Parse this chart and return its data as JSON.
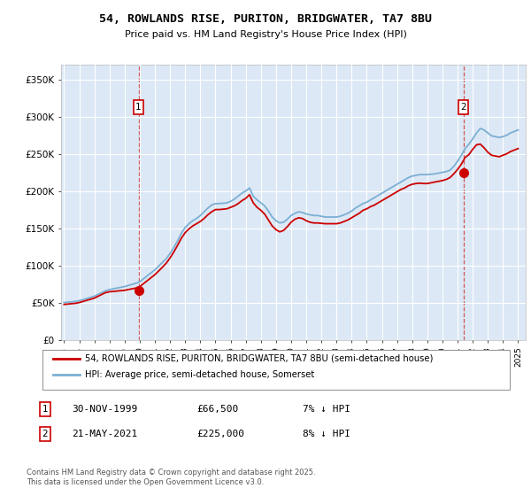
{
  "title_line1": "54, ROWLANDS RISE, PURITON, BRIDGWATER, TA7 8BU",
  "title_line2": "Price paid vs. HM Land Registry's House Price Index (HPI)",
  "legend_label1": "54, ROWLANDS RISE, PURITON, BRIDGWATER, TA7 8BU (semi-detached house)",
  "legend_label2": "HPI: Average price, semi-detached house, Somerset",
  "footnote": "Contains HM Land Registry data © Crown copyright and database right 2025.\nThis data is licensed under the Open Government Licence v3.0.",
  "purchase1_date": "30-NOV-1999",
  "purchase1_price": "£66,500",
  "purchase1_note": "7% ↓ HPI",
  "purchase2_date": "21-MAY-2021",
  "purchase2_price": "£225,000",
  "purchase2_note": "8% ↓ HPI",
  "hpi_color": "#7bafd4",
  "price_color": "#cc0000",
  "marker_color": "#cc0000",
  "bg_color": "#dce8f5",
  "grid_color": "#ffffff",
  "ylim_min": 0,
  "ylim_max": 370000,
  "yticks": [
    0,
    50000,
    100000,
    150000,
    200000,
    250000,
    300000,
    350000
  ],
  "ytick_labels": [
    "£0",
    "£50K",
    "£100K",
    "£150K",
    "£200K",
    "£250K",
    "£300K",
    "£350K"
  ],
  "purchase1_x": 1999.92,
  "purchase1_y": 66500,
  "purchase2_x": 2021.38,
  "purchase2_y": 225000,
  "vline1_x": 1999.92,
  "vline2_x": 2021.38,
  "xmin": 1994.8,
  "xmax": 2025.5,
  "hpi_data": [
    [
      1995.0,
      50000
    ],
    [
      1995.25,
      50500
    ],
    [
      1995.5,
      51000
    ],
    [
      1995.75,
      51500
    ],
    [
      1996.0,
      52500
    ],
    [
      1996.25,
      54000
    ],
    [
      1996.5,
      55500
    ],
    [
      1996.75,
      57000
    ],
    [
      1997.0,
      58500
    ],
    [
      1997.25,
      61000
    ],
    [
      1997.5,
      63500
    ],
    [
      1997.75,
      66000
    ],
    [
      1998.0,
      67500
    ],
    [
      1998.25,
      68500
    ],
    [
      1998.5,
      69500
    ],
    [
      1998.75,
      70500
    ],
    [
      1999.0,
      71500
    ],
    [
      1999.25,
      73000
    ],
    [
      1999.5,
      74500
    ],
    [
      1999.75,
      76000
    ],
    [
      2000.0,
      78000
    ],
    [
      2000.25,
      82000
    ],
    [
      2000.5,
      86000
    ],
    [
      2000.75,
      90000
    ],
    [
      2001.0,
      94000
    ],
    [
      2001.25,
      99000
    ],
    [
      2001.5,
      104000
    ],
    [
      2001.75,
      109000
    ],
    [
      2002.0,
      116000
    ],
    [
      2002.25,
      124000
    ],
    [
      2002.5,
      133000
    ],
    [
      2002.75,
      143000
    ],
    [
      2003.0,
      151000
    ],
    [
      2003.25,
      156000
    ],
    [
      2003.5,
      160000
    ],
    [
      2003.75,
      163000
    ],
    [
      2004.0,
      167000
    ],
    [
      2004.25,
      172000
    ],
    [
      2004.5,
      177000
    ],
    [
      2004.75,
      181000
    ],
    [
      2005.0,
      183000
    ],
    [
      2005.25,
      183000
    ],
    [
      2005.5,
      183500
    ],
    [
      2005.75,
      184000
    ],
    [
      2006.0,
      186000
    ],
    [
      2006.25,
      189000
    ],
    [
      2006.5,
      193000
    ],
    [
      2006.75,
      197000
    ],
    [
      2007.0,
      200000
    ],
    [
      2007.25,
      204000
    ],
    [
      2007.5,
      193000
    ],
    [
      2007.75,
      188000
    ],
    [
      2008.0,
      184000
    ],
    [
      2008.25,
      180000
    ],
    [
      2008.5,
      173000
    ],
    [
      2008.75,
      165000
    ],
    [
      2009.0,
      160000
    ],
    [
      2009.25,
      157000
    ],
    [
      2009.5,
      158000
    ],
    [
      2009.75,
      162000
    ],
    [
      2010.0,
      167000
    ],
    [
      2010.25,
      170000
    ],
    [
      2010.5,
      172000
    ],
    [
      2010.75,
      171000
    ],
    [
      2011.0,
      169000
    ],
    [
      2011.25,
      168000
    ],
    [
      2011.5,
      167000
    ],
    [
      2011.75,
      167000
    ],
    [
      2012.0,
      166000
    ],
    [
      2012.25,
      165000
    ],
    [
      2012.5,
      165000
    ],
    [
      2012.75,
      165000
    ],
    [
      2013.0,
      165000
    ],
    [
      2013.25,
      166000
    ],
    [
      2013.5,
      168000
    ],
    [
      2013.75,
      170000
    ],
    [
      2014.0,
      173000
    ],
    [
      2014.25,
      177000
    ],
    [
      2014.5,
      180000
    ],
    [
      2014.75,
      183000
    ],
    [
      2015.0,
      185000
    ],
    [
      2015.25,
      188000
    ],
    [
      2015.5,
      191000
    ],
    [
      2015.75,
      194000
    ],
    [
      2016.0,
      197000
    ],
    [
      2016.25,
      200000
    ],
    [
      2016.5,
      203000
    ],
    [
      2016.75,
      206000
    ],
    [
      2017.0,
      209000
    ],
    [
      2017.25,
      212000
    ],
    [
      2017.5,
      215000
    ],
    [
      2017.75,
      218000
    ],
    [
      2018.0,
      220000
    ],
    [
      2018.25,
      221000
    ],
    [
      2018.5,
      222000
    ],
    [
      2018.75,
      222000
    ],
    [
      2019.0,
      222000
    ],
    [
      2019.25,
      222500
    ],
    [
      2019.5,
      223000
    ],
    [
      2019.75,
      224000
    ],
    [
      2020.0,
      225000
    ],
    [
      2020.25,
      226000
    ],
    [
      2020.5,
      228000
    ],
    [
      2020.75,
      233000
    ],
    [
      2021.0,
      240000
    ],
    [
      2021.25,
      248000
    ],
    [
      2021.5,
      257000
    ],
    [
      2021.75,
      263000
    ],
    [
      2022.0,
      270000
    ],
    [
      2022.25,
      278000
    ],
    [
      2022.5,
      284000
    ],
    [
      2022.75,
      282000
    ],
    [
      2023.0,
      278000
    ],
    [
      2023.25,
      274000
    ],
    [
      2023.5,
      273000
    ],
    [
      2023.75,
      272000
    ],
    [
      2024.0,
      273000
    ],
    [
      2024.25,
      275000
    ],
    [
      2024.5,
      278000
    ],
    [
      2024.75,
      280000
    ],
    [
      2025.0,
      282000
    ]
  ],
  "price_data": [
    [
      1995.0,
      47500
    ],
    [
      1995.25,
      48000
    ],
    [
      1995.5,
      48500
    ],
    [
      1995.75,
      49000
    ],
    [
      1996.0,
      50000
    ],
    [
      1996.25,
      51500
    ],
    [
      1996.5,
      53000
    ],
    [
      1996.75,
      54500
    ],
    [
      1997.0,
      56000
    ],
    [
      1997.25,
      58500
    ],
    [
      1997.5,
      61000
    ],
    [
      1997.75,
      63500
    ],
    [
      1998.0,
      64500
    ],
    [
      1998.25,
      65000
    ],
    [
      1998.5,
      65500
    ],
    [
      1998.75,
      66000
    ],
    [
      1999.0,
      66500
    ],
    [
      1999.25,
      67500
    ],
    [
      1999.5,
      68500
    ],
    [
      1999.75,
      69500
    ],
    [
      2000.0,
      71500
    ],
    [
      2000.25,
      75500
    ],
    [
      2000.5,
      79500
    ],
    [
      2000.75,
      83500
    ],
    [
      2001.0,
      87500
    ],
    [
      2001.25,
      92500
    ],
    [
      2001.5,
      97500
    ],
    [
      2001.75,
      103000
    ],
    [
      2002.0,
      110000
    ],
    [
      2002.25,
      118000
    ],
    [
      2002.5,
      127000
    ],
    [
      2002.75,
      136500
    ],
    [
      2003.0,
      144000
    ],
    [
      2003.25,
      149000
    ],
    [
      2003.5,
      153000
    ],
    [
      2003.75,
      156000
    ],
    [
      2004.0,
      159000
    ],
    [
      2004.25,
      163000
    ],
    [
      2004.5,
      168000
    ],
    [
      2004.75,
      172000
    ],
    [
      2005.0,
      175000
    ],
    [
      2005.25,
      175000
    ],
    [
      2005.5,
      175500
    ],
    [
      2005.75,
      176000
    ],
    [
      2006.0,
      178000
    ],
    [
      2006.25,
      180000
    ],
    [
      2006.5,
      183000
    ],
    [
      2006.75,
      187000
    ],
    [
      2007.0,
      190000
    ],
    [
      2007.25,
      195000
    ],
    [
      2007.5,
      184000
    ],
    [
      2007.75,
      178000
    ],
    [
      2008.0,
      174000
    ],
    [
      2008.25,
      169000
    ],
    [
      2008.5,
      161000
    ],
    [
      2008.75,
      153000
    ],
    [
      2009.0,
      148000
    ],
    [
      2009.25,
      145000
    ],
    [
      2009.5,
      147000
    ],
    [
      2009.75,
      152000
    ],
    [
      2010.0,
      158000
    ],
    [
      2010.25,
      162000
    ],
    [
      2010.5,
      164000
    ],
    [
      2010.75,
      163000
    ],
    [
      2011.0,
      160000
    ],
    [
      2011.25,
      158000
    ],
    [
      2011.5,
      157000
    ],
    [
      2011.75,
      157000
    ],
    [
      2012.0,
      156500
    ],
    [
      2012.25,
      156000
    ],
    [
      2012.5,
      156000
    ],
    [
      2012.75,
      156000
    ],
    [
      2013.0,
      156000
    ],
    [
      2013.25,
      157000
    ],
    [
      2013.5,
      159000
    ],
    [
      2013.75,
      161000
    ],
    [
      2014.0,
      164000
    ],
    [
      2014.25,
      167000
    ],
    [
      2014.5,
      170000
    ],
    [
      2014.75,
      174000
    ],
    [
      2015.0,
      176000
    ],
    [
      2015.25,
      179000
    ],
    [
      2015.5,
      181000
    ],
    [
      2015.75,
      184000
    ],
    [
      2016.0,
      187000
    ],
    [
      2016.25,
      190000
    ],
    [
      2016.5,
      193000
    ],
    [
      2016.75,
      196000
    ],
    [
      2017.0,
      199000
    ],
    [
      2017.25,
      202000
    ],
    [
      2017.5,
      204000
    ],
    [
      2017.75,
      207000
    ],
    [
      2018.0,
      209000
    ],
    [
      2018.25,
      210000
    ],
    [
      2018.5,
      210500
    ],
    [
      2018.75,
      210000
    ],
    [
      2019.0,
      210000
    ],
    [
      2019.25,
      211000
    ],
    [
      2019.5,
      212000
    ],
    [
      2019.75,
      213000
    ],
    [
      2020.0,
      214000
    ],
    [
      2020.25,
      215500
    ],
    [
      2020.5,
      218000
    ],
    [
      2020.75,
      223000
    ],
    [
      2021.0,
      229000
    ],
    [
      2021.25,
      236000
    ],
    [
      2021.5,
      245000
    ],
    [
      2021.75,
      249000
    ],
    [
      2022.0,
      256000
    ],
    [
      2022.25,
      262000
    ],
    [
      2022.5,
      263000
    ],
    [
      2022.75,
      258000
    ],
    [
      2023.0,
      252000
    ],
    [
      2023.25,
      248000
    ],
    [
      2023.5,
      247000
    ],
    [
      2023.75,
      246000
    ],
    [
      2024.0,
      248000
    ],
    [
      2024.25,
      250000
    ],
    [
      2024.5,
      253000
    ],
    [
      2024.75,
      255000
    ],
    [
      2025.0,
      257000
    ]
  ]
}
